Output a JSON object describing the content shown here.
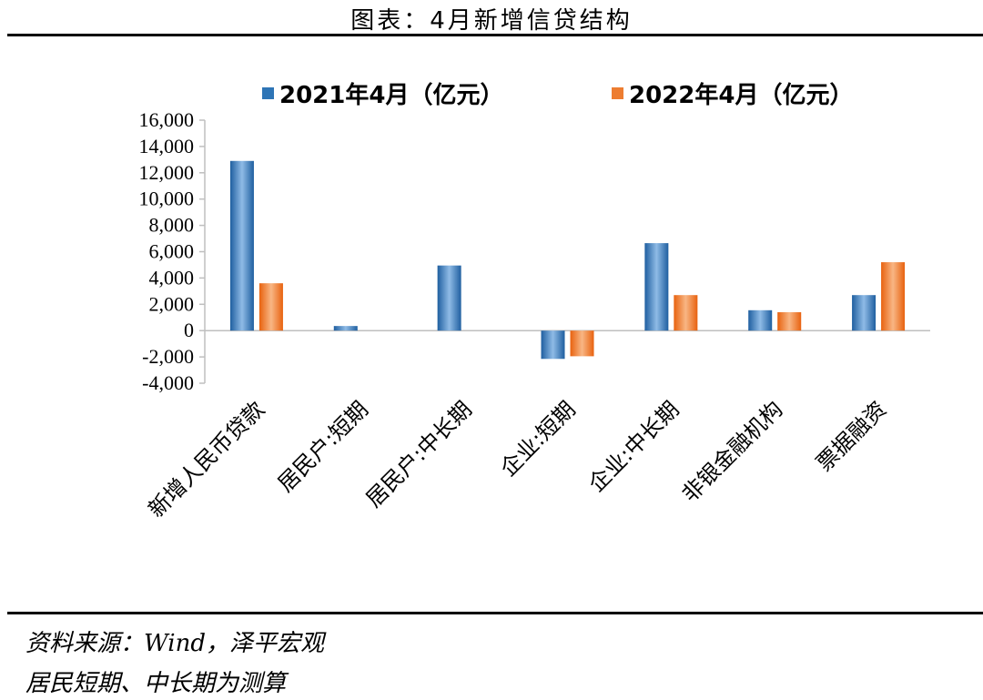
{
  "figure_title": "图表：4月新增信贷结构",
  "source_line1": "资料来源：Wind，泽平宏观",
  "source_line2": "居民短期、中长期为测算",
  "colors": {
    "series1": "#2e75b6",
    "series2": "#ed7d31"
  },
  "chart_data": {
    "type": "bar",
    "categories": [
      "新增人民币贷款",
      "居民户:短期",
      "居民户:中长期",
      "企业:短期",
      "企业:中长期",
      "非银金融机构",
      "票据融资"
    ],
    "series": [
      {
        "name": "2021年4月（亿元）",
        "values": [
          12900,
          350,
          4950,
          -2150,
          6650,
          1550,
          2700
        ]
      },
      {
        "name": "2022年4月（亿元）",
        "values": [
          3600,
          null,
          null,
          -1950,
          2700,
          1400,
          5200
        ]
      }
    ],
    "ylim": [
      -4000,
      16000
    ],
    "yticks": [
      16000,
      14000,
      12000,
      10000,
      8000,
      6000,
      4000,
      2000,
      0,
      -2000,
      -4000
    ],
    "ytick_labels": [
      "16,000",
      "14,000",
      "12,000",
      "10,000",
      "8,000",
      "6,000",
      "4,000",
      "2,000",
      "0",
      "-2,000",
      "-4,000"
    ],
    "legend_position": "top",
    "grid": false
  }
}
